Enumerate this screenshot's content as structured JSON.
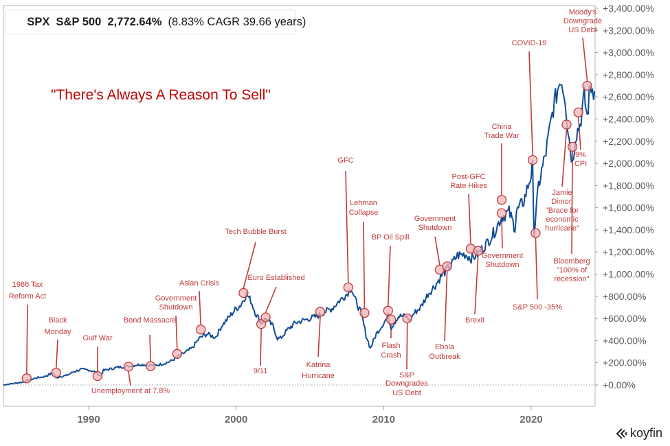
{
  "legend": {
    "ticker": "SPX",
    "name": "S&P 500",
    "total_return": "2,772.64%",
    "cagr_text": "(8.83% CAGR 39.66 years)",
    "series_color": "#0f4c95"
  },
  "headline": "\"There's Always A Reason To Sell\"",
  "branding": {
    "logo_text": "koyfin"
  },
  "colors": {
    "line": "#0f4c95",
    "annotation": "#c0393b",
    "marker_fill": "#f4b6b8",
    "axis": "#9a9a9a",
    "headline": "#c00000"
  },
  "chart_data": {
    "type": "line",
    "title": "SPX S&P 500 2,772.64% (8.83% CAGR 39.66 years)",
    "subtitle": "\"There's Always A Reason To Sell\"",
    "xlabel": "",
    "ylabel": "",
    "x_range": [
      1984.2,
      2024.6
    ],
    "ylim": [
      0,
      3400
    ],
    "y_ticks": [
      0,
      200,
      400,
      600,
      800,
      1000,
      1200,
      1400,
      1600,
      1800,
      2000,
      2200,
      2400,
      2600,
      2800,
      3000,
      3200,
      3400
    ],
    "y_tick_labels": [
      "+0.00%",
      "+200.00%",
      "+400.00%",
      "+600.00%",
      "+800.00%",
      "+1,000.00%",
      "+1,200.00%",
      "+1,400.00%",
      "+1,600.00%",
      "+1,800.00%",
      "+2,000.00%",
      "+2,200.00%",
      "+2,400.00%",
      "+2,600.00%",
      "+2,800.00%",
      "+3,000.00%",
      "+3,200.00%",
      "+3,400.00%"
    ],
    "x_ticks": [
      1990,
      2000,
      2010,
      2020
    ],
    "x_tick_labels": [
      "1990",
      "2000",
      "2010",
      "2020"
    ],
    "y_axis_side": "right",
    "baseline_dotted_at": 0,
    "series": [
      {
        "name": "S&P 500 cumulative return (%)",
        "x": [
          1984.2,
          1985,
          1985.5,
          1986,
          1986.5,
          1987,
          1987.6,
          1987.8,
          1988,
          1988.5,
          1989,
          1989.5,
          1990,
          1990.5,
          1990.8,
          1991,
          1991.5,
          1992,
          1992.5,
          1993,
          1993.5,
          1994,
          1994.5,
          1995,
          1995.5,
          1996,
          1996.5,
          1997,
          1997.5,
          1998,
          1998.6,
          1998.9,
          1999,
          1999.5,
          2000,
          2000.3,
          2000.7,
          2001,
          2001.3,
          2001.7,
          2002,
          2002.5,
          2002.8,
          2003,
          2003.5,
          2004,
          2004.5,
          2005,
          2005.5,
          2006,
          2006.5,
          2007,
          2007.5,
          2007.8,
          2008,
          2008.5,
          2008.8,
          2009.1,
          2009.5,
          2010,
          2010.3,
          2010.5,
          2011,
          2011.5,
          2011.8,
          2012,
          2012.5,
          2013,
          2013.5,
          2014,
          2014.5,
          2015,
          2015.5,
          2016,
          2016.5,
          2017,
          2017.5,
          2018,
          2018.5,
          2018.9,
          2019,
          2019.5,
          2020,
          2020.1,
          2020.2,
          2020.5,
          2021,
          2021.5,
          2022,
          2022.3,
          2022.5,
          2022.8,
          2023,
          2023.3,
          2023.6,
          2023.8,
          2024,
          2024.3
        ],
        "y": [
          0,
          15,
          25,
          45,
          65,
          75,
          110,
          60,
          75,
          85,
          120,
          140,
          135,
          115,
          80,
          130,
          145,
          160,
          165,
          175,
          185,
          180,
          175,
          190,
          210,
          250,
          290,
          330,
          420,
          460,
          430,
          500,
          530,
          610,
          690,
          720,
          820,
          760,
          650,
          560,
          600,
          530,
          420,
          420,
          500,
          560,
          580,
          600,
          620,
          660,
          690,
          760,
          820,
          880,
          790,
          640,
          450,
          330,
          460,
          560,
          620,
          520,
          620,
          620,
          580,
          640,
          700,
          820,
          900,
          1000,
          1070,
          1170,
          1180,
          1140,
          1200,
          1280,
          1380,
          1520,
          1560,
          1420,
          1560,
          1660,
          1900,
          1960,
          1360,
          1800,
          2100,
          2500,
          2780,
          2600,
          2300,
          2000,
          2250,
          2350,
          2600,
          2420,
          2700,
          2650
        ]
      }
    ],
    "annotations": [
      {
        "label": "1986 Tax Reform Act",
        "x": 1985.8,
        "y": 60
      },
      {
        "label": "Black Monday",
        "x": 1987.8,
        "y": 110
      },
      {
        "label": "Gulf War",
        "x": 1990.6,
        "y": 80
      },
      {
        "label": "Unemployment at 7.8%",
        "x": 1992.7,
        "y": 165
      },
      {
        "label": "Bond Massacre",
        "x": 1994.2,
        "y": 170
      },
      {
        "label": "Government Shutdown",
        "x": 1996.0,
        "y": 280
      },
      {
        "label": "Asian Crisis",
        "x": 1997.6,
        "y": 500
      },
      {
        "label": "Tech Bubble Burst",
        "x": 2000.5,
        "y": 830
      },
      {
        "label": "9/11",
        "x": 2001.7,
        "y": 550
      },
      {
        "label": "Euro Established",
        "x": 2002.0,
        "y": 610
      },
      {
        "label": "Katrina Hurricane",
        "x": 2005.7,
        "y": 660
      },
      {
        "label": "GFC",
        "x": 2007.6,
        "y": 880
      },
      {
        "label": "Lehman Collapse",
        "x": 2008.7,
        "y": 650
      },
      {
        "label": "BP Oil Spill",
        "x": 2010.3,
        "y": 670
      },
      {
        "label": "Flash Crash",
        "x": 2010.5,
        "y": 590
      },
      {
        "label": "S&P Downgrades US Debt",
        "x": 2011.6,
        "y": 600
      },
      {
        "label": "Government Shutdown",
        "x": 2013.8,
        "y": 1040
      },
      {
        "label": "Ebola Outbreak",
        "x": 2014.3,
        "y": 1070
      },
      {
        "label": "Post-GFC Rate Hikes",
        "x": 2015.9,
        "y": 1230
      },
      {
        "label": "Brexit",
        "x": 2016.4,
        "y": 1210
      },
      {
        "label": "China Trade War",
        "x": 2018.0,
        "y": 1670
      },
      {
        "label": "Government Shutdown",
        "x": 2018.0,
        "y": 1550
      },
      {
        "label": "COVID-19",
        "x": 2020.1,
        "y": 2030
      },
      {
        "label": "S&P 500 -35%",
        "x": 2020.3,
        "y": 1370
      },
      {
        "label": "Jamie Dimon \"Brace for economic hurricane\"",
        "x": 2022.4,
        "y": 2350
      },
      {
        "label": "Bloomberg \"100% of recession\"",
        "x": 2022.8,
        "y": 2150
      },
      {
        "label": "9% CPI",
        "x": 2023.2,
        "y": 2460
      },
      {
        "label": "Moody's Downgrade US Debt",
        "x": 2023.8,
        "y": 2700
      }
    ]
  }
}
